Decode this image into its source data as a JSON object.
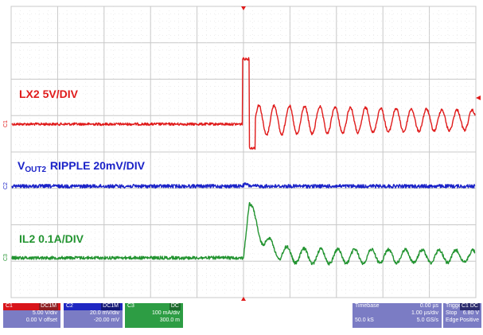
{
  "colors": {
    "ch1": "#e01b1b",
    "ch2": "#1a22c8",
    "ch3": "#239431",
    "grid": "#c8c8c8",
    "trigger_marker": "#e01b1b"
  },
  "labels": {
    "lx2": "LX2 5V/DIV",
    "vout_main": "V",
    "vout_sub": "OUT2",
    "vout_rest": " RIPPLE  20mV/DIV",
    "il2": "IL2 0.1A/DIV"
  },
  "channel_tags": {
    "c1": "C1",
    "c2": "C2",
    "c3": "C3"
  },
  "channels": {
    "c1": {
      "name": "C1",
      "coupling": "DC1M",
      "scale": "5.00 V/div",
      "offset": "0.00 V offset"
    },
    "c2": {
      "name": "C2",
      "coupling": "DC1M",
      "scale": "20.0 mV/div",
      "offset": "-20.00 mV"
    },
    "c3": {
      "name": "C3",
      "coupling": "DC",
      "scale": "100 mA/div",
      "offset": "300.0 m"
    }
  },
  "timebase": {
    "label": "Timebase",
    "delay": "0.00 µs",
    "scale": "1.00 µs/div",
    "samples": "50.0 kS",
    "rate": "5.0 GS/s"
  },
  "trigger": {
    "label": "Trigger",
    "coupling": "C1 DC",
    "mode": "Stop",
    "level": "6.80 V",
    "type": "Edge",
    "slope": "Positive"
  },
  "chart_data": {
    "type": "line",
    "x_unit": "µs",
    "xlim": [
      -5,
      5
    ],
    "x_divisions": 10,
    "y_divisions": 8,
    "grid": true,
    "series": [
      {
        "name": "LX2",
        "scale_per_div": "5V/DIV",
        "x": [
          -5,
          -0.1,
          0.0,
          0.05,
          0.1,
          0.2,
          0.25,
          0.4,
          0.6,
          0.8,
          1.0,
          1.4,
          2.0,
          3.0,
          4.0,
          5.0
        ],
        "y_div": [
          0,
          0,
          3.2,
          3.3,
          -1.0,
          -1.0,
          -0.9,
          1.1,
          -0.8,
          1.0,
          -0.7,
          1.0,
          -0.6,
          -0.5,
          0.8,
          0.4
        ]
      },
      {
        "name": "VOUT2 RIPPLE",
        "scale_per_div": "20mV/DIV",
        "x": [
          -5,
          0.0,
          0.1,
          0.2,
          5.0
        ],
        "y_div": [
          0,
          0,
          0.15,
          0,
          0
        ]
      },
      {
        "name": "IL2",
        "scale_per_div": "0.1A/DIV",
        "x": [
          -5,
          0.0,
          0.1,
          0.3,
          0.5,
          0.7,
          1.0,
          2.0,
          3.0,
          4.0,
          5.0
        ],
        "y_div": [
          0,
          0,
          2.6,
          1.1,
          -0.4,
          0.2,
          -0.2,
          0.15,
          -0.15,
          0.15,
          0
        ]
      }
    ]
  }
}
